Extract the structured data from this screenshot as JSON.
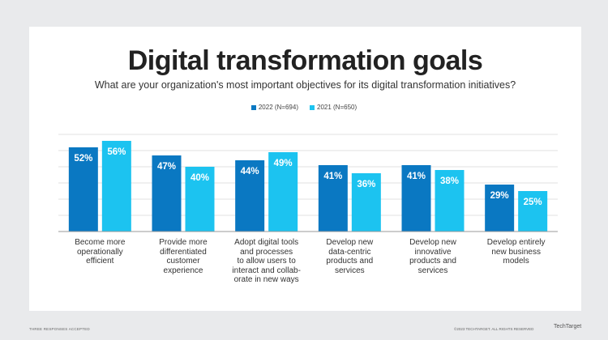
{
  "chart_data": {
    "type": "bar",
    "title": "Digital transformation goals",
    "subtitle": "What are your organization's most important objectives for its digital transformation initiatives?",
    "categories": [
      "Become more operationally efficient",
      "Provide  more differentiated customer experience",
      "Adopt digital tools and processes to allow users to interact and collab-orate in new ways",
      "Develop new data-centric products and services",
      "Develop new innovative products and services",
      "Develop entirely new business models"
    ],
    "category_lines": [
      [
        "Become more",
        "operationally",
        "efficient"
      ],
      [
        "Provide  more",
        "differentiated",
        "customer",
        "experience"
      ],
      [
        "Adopt digital tools",
        "and processes",
        "to allow users to",
        "interact and collab-",
        "orate in new ways"
      ],
      [
        "Develop new",
        "data-centric",
        "products and",
        "services"
      ],
      [
        "Develop new",
        "innovative",
        "products and",
        "services"
      ],
      [
        "Develop entirely",
        "new business",
        "models"
      ]
    ],
    "series": [
      {
        "name": "2022 (N=694)",
        "values": [
          52,
          47,
          44,
          41,
          41,
          29
        ],
        "labels": [
          "52%",
          "47%",
          "44%",
          "41%",
          "41%",
          "29%"
        ],
        "color": "#0a78c2"
      },
      {
        "name": "2021 (N=650)",
        "values": [
          56,
          40,
          49,
          36,
          38,
          25
        ],
        "labels": [
          "56%",
          "40%",
          "49%",
          "36%",
          "38%",
          "25%"
        ],
        "color": "#1cc3f0"
      }
    ],
    "ylim": [
      0,
      60
    ],
    "grid": true,
    "legend_placement": "top-center",
    "xlabel": "",
    "ylabel": ""
  },
  "footer": {
    "note": "THREE RESPONSES ACCEPTED",
    "copyright": "©2023 TECHTARGET. ALL RIGHTS RESERVED",
    "brand": "TechTarget"
  }
}
